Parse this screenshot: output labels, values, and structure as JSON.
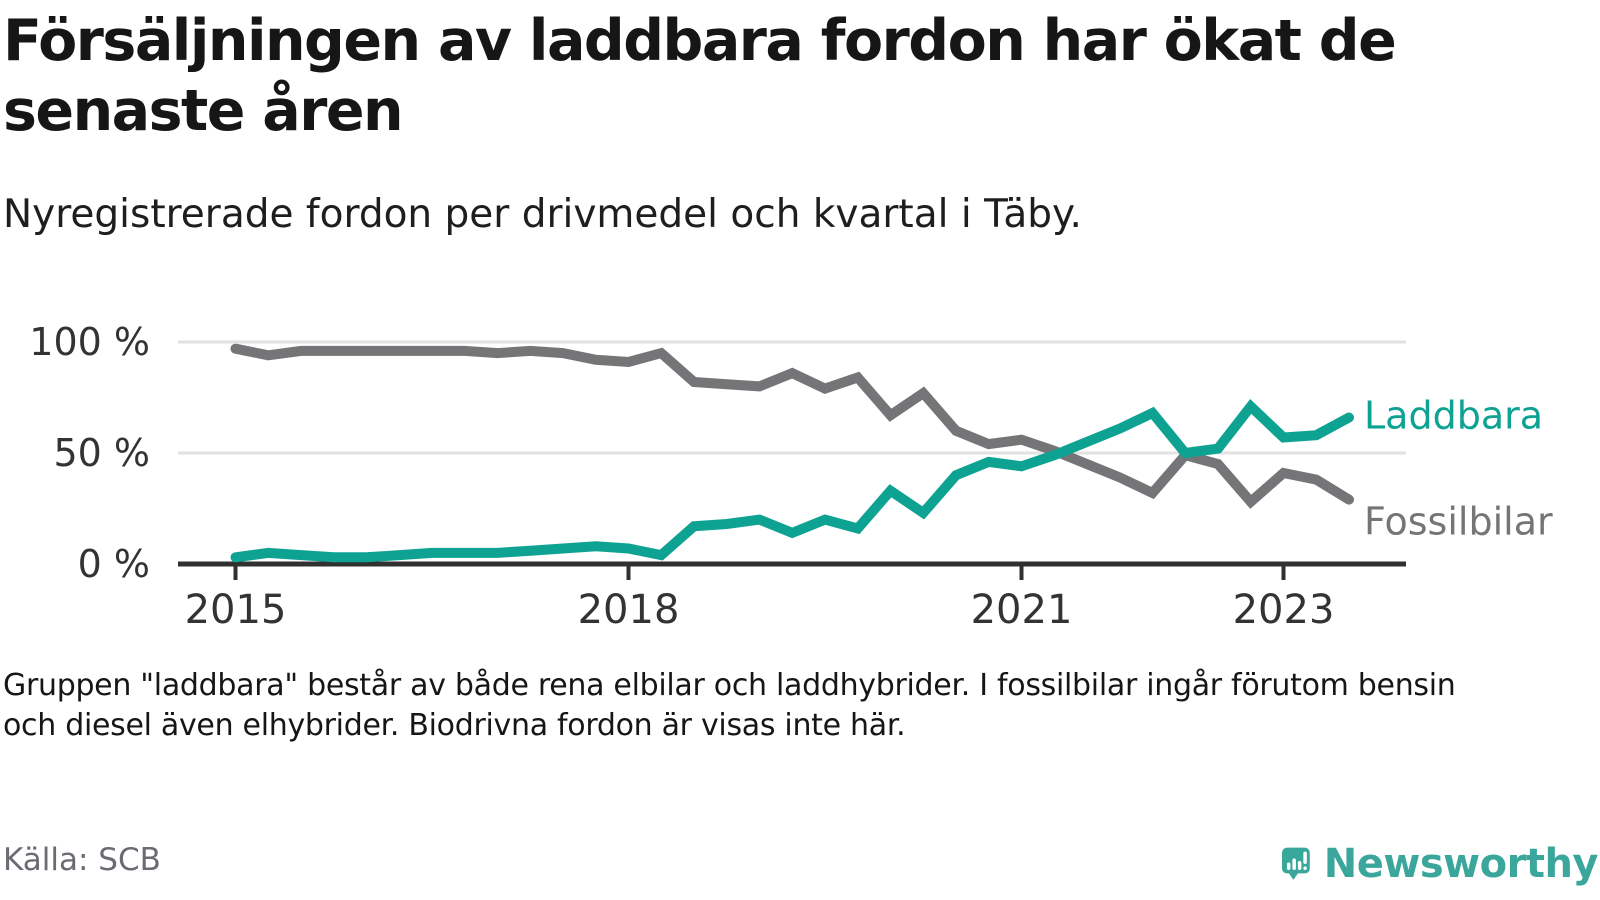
{
  "header": {
    "title_lines": [
      "Försäljningen av laddbara fordon har ökat de",
      "senaste åren"
    ],
    "subtitle": "Nyregistrerade fordon per drivmedel och kvartal i Täby."
  },
  "chart_data": {
    "type": "line",
    "title": "Nyregistrerade fordon per drivmedel och kvartal i Täby",
    "x_unit": "quarter",
    "quarters": [
      "2015 Q1",
      "2015 Q2",
      "2015 Q3",
      "2015 Q4",
      "2016 Q1",
      "2016 Q2",
      "2016 Q3",
      "2016 Q4",
      "2017 Q1",
      "2017 Q2",
      "2017 Q3",
      "2017 Q4",
      "2018 Q1",
      "2018 Q2",
      "2018 Q3",
      "2018 Q4",
      "2019 Q1",
      "2019 Q2",
      "2019 Q3",
      "2019 Q4",
      "2020 Q1",
      "2020 Q2",
      "2020 Q3",
      "2020 Q4",
      "2021 Q1",
      "2021 Q2",
      "2021 Q3",
      "2021 Q4",
      "2022 Q1",
      "2022 Q2",
      "2022 Q3",
      "2022 Q4",
      "2023 Q1",
      "2023 Q2",
      "2023 Q3"
    ],
    "series": [
      {
        "name": "Laddbara",
        "color": "#0ea293",
        "values": [
          3,
          5,
          4,
          3,
          3,
          4,
          5,
          5,
          5,
          6,
          7,
          8,
          7,
          4,
          17,
          18,
          20,
          14,
          20,
          16,
          33,
          23,
          40,
          46,
          44,
          49,
          55,
          61,
          68,
          50,
          52,
          71,
          57,
          58,
          66
        ]
      },
      {
        "name": "Fossilbilar",
        "color": "#757578",
        "values": [
          97,
          94,
          96,
          96,
          96,
          96,
          96,
          96,
          95,
          96,
          95,
          92,
          91,
          95,
          82,
          81,
          80,
          86,
          79,
          84,
          67,
          77,
          60,
          54,
          56,
          51,
          45,
          39,
          32,
          49,
          45,
          28,
          41,
          38,
          29
        ]
      }
    ],
    "ylim": [
      0,
      100
    ],
    "y_ticks": [
      {
        "value": 100,
        "label": "100 %"
      },
      {
        "value": 50,
        "label": "50 %"
      },
      {
        "value": 0,
        "label": "0 %"
      }
    ],
    "x_ticks": [
      {
        "year": 2015,
        "label": "2015"
      },
      {
        "year": 2018,
        "label": "2018"
      },
      {
        "year": 2021,
        "label": "2021"
      },
      {
        "year": 2023,
        "label": "2023"
      }
    ],
    "grid": "horizontal",
    "legend_position": "right-of-line-end",
    "axis_color": "#303030",
    "grid_color": "#e2e2e2",
    "tick_label_color": "#333333"
  },
  "footnote_lines": [
    "Gruppen \"laddbara\" består av både rena elbilar och laddhybrider. I fossilbilar ingår förutom bensin",
    "och diesel även elhybrider. Biodrivna fordon är visas inte här."
  ],
  "source": "Källa: SCB",
  "logo": {
    "text": "Newsworthy",
    "color": "#3ba69b",
    "icon": "newsworthy-speech-bubble-chart-icon"
  }
}
